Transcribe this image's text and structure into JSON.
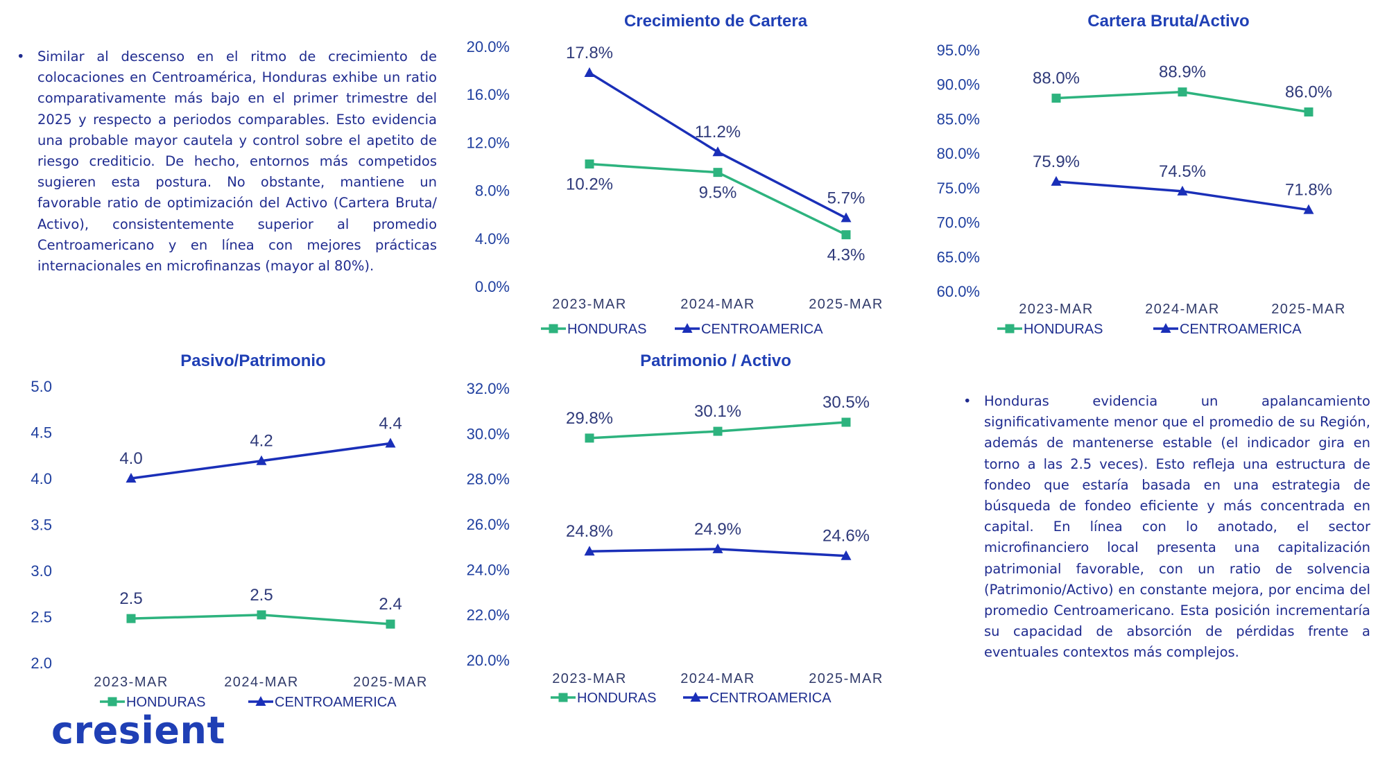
{
  "texts": {
    "left_paragraph": "Similar al descenso en el ritmo de crecimiento de colocaciones en Centroamérica, Honduras exhibe un ratio comparativamente más bajo en el primer trimestre del 2025 y respecto a periodos comparables. Esto evidencia una probable mayor cautela y control sobre el apetito de riesgo crediticio. De hecho, entornos más competidos sugieren esta postura. No obstante, mantiene un favorable ratio de optimización del Activo (Cartera Bruta/ Activo), consistentemente superior al promedio Centroamericano y en línea con mejores prácticas internacionales en microfinanzas (mayor al 80%).",
    "right_paragraph": "Honduras evidencia un apalancamiento significativamente menor que el promedio de su Región, además de mantenerse estable (el indicador gira en torno a las 2.5 veces). Esto refleja una estructura de fondeo que estaría basada en una estrategia de búsqueda de fondeo eficiente y más concentrada en capital. En línea con lo anotado, el sector microfinanciero local presenta una capitalización patrimonial favorable, con un ratio de solvencia (Patrimonio/Activo) en constante mejora, por encima del promedio Centroamericano. Esta posición incrementaría su capacidad de absorción de pérdidas frente a eventuales contextos más complejos.",
    "bullet": "•"
  },
  "logo": {
    "text": "cresient"
  },
  "colors": {
    "honduras": "#2db37e",
    "centroamerica": "#1a2fb8",
    "title": "#1f3fb5"
  },
  "chart_data": [
    {
      "id": "crecimiento",
      "type": "line",
      "title": "Crecimiento de Cartera",
      "categories": [
        "2023-MAR",
        "2024-MAR",
        "2025-MAR"
      ],
      "ylim": [
        0,
        20
      ],
      "yticks": [
        "0.0%",
        "4.0%",
        "8.0%",
        "12.0%",
        "16.0%",
        "20.0%"
      ],
      "legend_position": "bottom",
      "series": [
        {
          "name": "HONDURAS",
          "marker": "square",
          "color": "#2db37e",
          "values": [
            10.2,
            9.5,
            4.3
          ],
          "labels": [
            "10.2%",
            "9.5%",
            "4.3%"
          ],
          "label_pos": [
            "below",
            "below",
            "below"
          ]
        },
        {
          "name": "CENTROAMERICA",
          "marker": "triangle",
          "color": "#1a2fb8",
          "values": [
            17.8,
            11.2,
            5.7
          ],
          "labels": [
            "17.8%",
            "11.2%",
            "5.7%"
          ],
          "label_pos": [
            "above",
            "above",
            "above"
          ]
        }
      ]
    },
    {
      "id": "cartera_activo",
      "type": "line",
      "title": "Cartera Bruta/Activo",
      "categories": [
        "2023-MAR",
        "2024-MAR",
        "2025-MAR"
      ],
      "ylim": [
        60,
        95
      ],
      "yticks": [
        "60.0%",
        "65.0%",
        "70.0%",
        "75.0%",
        "80.0%",
        "85.0%",
        "90.0%",
        "95.0%"
      ],
      "legend_position": "bottom",
      "series": [
        {
          "name": "HONDURAS",
          "marker": "square",
          "color": "#2db37e",
          "values": [
            88.0,
            88.9,
            86.0
          ],
          "labels": [
            "88.0%",
            "88.9%",
            "86.0%"
          ],
          "label_pos": [
            "above",
            "above",
            "above"
          ]
        },
        {
          "name": "CENTROAMERICA",
          "marker": "triangle",
          "color": "#1a2fb8",
          "values": [
            75.9,
            74.5,
            71.8
          ],
          "labels": [
            "75.9%",
            "74.5%",
            "71.8%"
          ],
          "label_pos": [
            "above",
            "above",
            "above"
          ]
        }
      ]
    },
    {
      "id": "pasivo_patrimonio",
      "type": "line",
      "title": "Pasivo/Patrimonio",
      "categories": [
        "2023-MAR",
        "2024-MAR",
        "2025-MAR"
      ],
      "ylim": [
        2.0,
        5.0
      ],
      "yticks": [
        "2.0",
        "2.5",
        "3.0",
        "3.5",
        "4.0",
        "4.5",
        "5.0"
      ],
      "legend_position": "bottom",
      "series": [
        {
          "name": "HONDURAS",
          "marker": "square",
          "color": "#2db37e",
          "values": [
            2.48,
            2.52,
            2.42
          ],
          "labels": [
            "2.5",
            "2.5",
            "2.4"
          ],
          "label_pos": [
            "above",
            "above",
            "above"
          ]
        },
        {
          "name": "CENTROAMERICA",
          "marker": "triangle",
          "color": "#1a2fb8",
          "values": [
            4.0,
            4.19,
            4.38
          ],
          "labels": [
            "4.0",
            "4.2",
            "4.4"
          ],
          "label_pos": [
            "above",
            "above",
            "above"
          ]
        }
      ]
    },
    {
      "id": "patrimonio_activo",
      "type": "line",
      "title": "Patrimonio / Activo",
      "categories": [
        "2023-MAR",
        "2024-MAR",
        "2025-MAR"
      ],
      "ylim": [
        20,
        32
      ],
      "yticks": [
        "20.0%",
        "22.0%",
        "24.0%",
        "26.0%",
        "28.0%",
        "30.0%",
        "32.0%"
      ],
      "legend_position": "bottom",
      "series": [
        {
          "name": "HONDURAS",
          "marker": "square",
          "color": "#2db37e",
          "values": [
            29.8,
            30.1,
            30.5
          ],
          "labels": [
            "29.8%",
            "30.1%",
            "30.5%"
          ],
          "label_pos": [
            "above",
            "above",
            "above"
          ]
        },
        {
          "name": "CENTROAMERICA",
          "marker": "triangle",
          "color": "#1a2fb8",
          "values": [
            24.8,
            24.9,
            24.6
          ],
          "labels": [
            "24.8%",
            "24.9%",
            "24.6%"
          ],
          "label_pos": [
            "above",
            "above",
            "above"
          ]
        }
      ]
    }
  ]
}
